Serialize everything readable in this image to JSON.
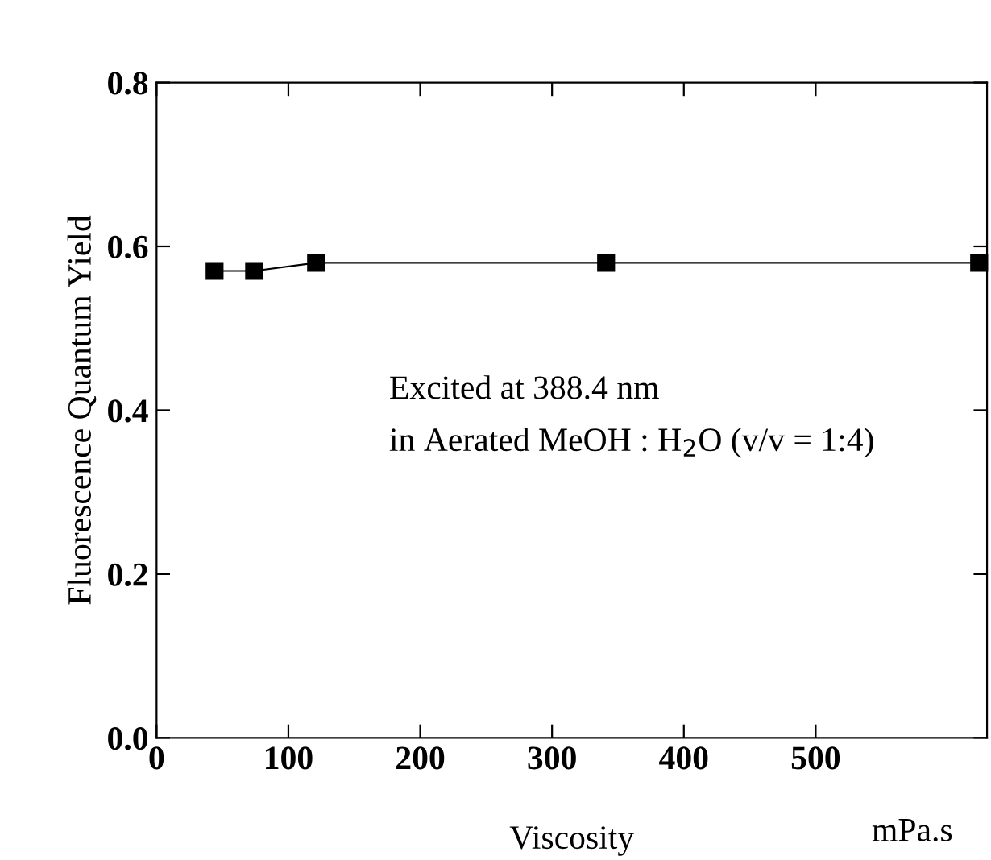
{
  "chart_data": {
    "type": "line",
    "xlabel": "Viscosity",
    "ylabel": "Fluorescence Quantum Yield",
    "x": [
      44,
      74,
      121,
      341,
      624
    ],
    "series": [
      {
        "color": "#000000",
        "values": [
          0.57,
          0.57,
          0.58,
          0.58,
          0.58
        ]
      }
    ],
    "marker": "square",
    "line_style": "solid",
    "grid": false,
    "xlim": [
      0,
      630
    ],
    "ylim": [
      0.0,
      0.8
    ],
    "xticks": [
      0,
      100,
      200,
      300,
      400,
      500
    ],
    "yticks": [
      {
        "value": 0.0,
        "label": "0.0"
      },
      0.2,
      0.4,
      0.6,
      0.8
    ],
    "annotations": [
      "Excited at 388.4 nm",
      "in Aerated MeOH : H$_{2}$O (v/v = 1:4)",
      "mPa.s"
    ]
  }
}
